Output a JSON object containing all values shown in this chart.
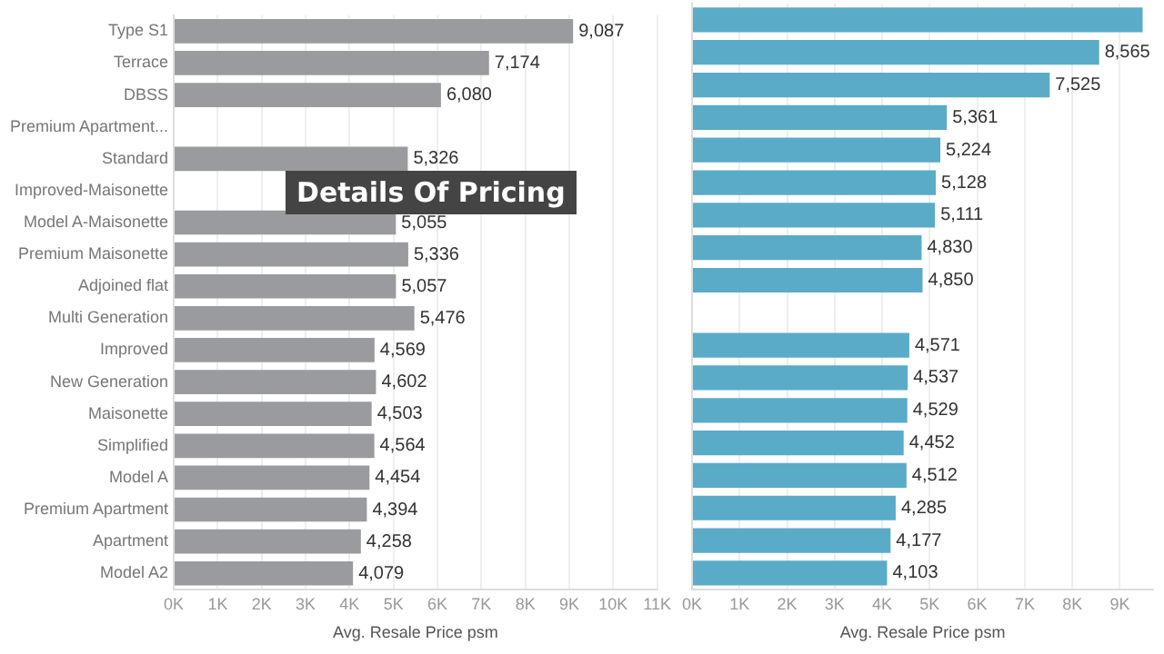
{
  "chart_data": [
    {
      "type": "bar",
      "orientation": "horizontal",
      "xlabel": "Avg. Resale Price psm",
      "categories": [
        "Type S1",
        "Terrace",
        "DBSS",
        "Premium Apartment...",
        "Standard",
        "Improved-Maisonette",
        "Model A-Maisonette",
        "Premium Maisonette",
        "Adjoined flat",
        "Multi Generation",
        "Improved",
        "New Generation",
        "Maisonette",
        "Simplified",
        "Model A",
        "Premium Apartment",
        "Apartment",
        "Model A2"
      ],
      "series": [
        {
          "color": "#999b9e",
          "values": [
            9087,
            7174,
            6080,
            null,
            5326,
            null,
            5055,
            5336,
            5057,
            5476,
            4569,
            4602,
            4503,
            4564,
            4454,
            4394,
            4258,
            4079
          ],
          "value_labels": [
            "9,087",
            "7,174",
            "6,080",
            null,
            "5,326",
            null,
            "5,055",
            "5,336",
            "5,057",
            "5,476",
            "4,569",
            "4,602",
            "4,503",
            "4,564",
            "4,454",
            "4,394",
            "4,258",
            "4,079"
          ]
        }
      ],
      "xlim": [
        0,
        11000
      ],
      "xticks": [
        {
          "value": 0,
          "label": "0K"
        },
        {
          "value": 1000,
          "label": "1K"
        },
        {
          "value": 2000,
          "label": "2K"
        },
        {
          "value": 3000,
          "label": "3K"
        },
        {
          "value": 4000,
          "label": "4K"
        },
        {
          "value": 5000,
          "label": "5K"
        },
        {
          "value": 6000,
          "label": "6K"
        },
        {
          "value": 7000,
          "label": "7K"
        },
        {
          "value": 8000,
          "label": "8K"
        },
        {
          "value": 9000,
          "label": "9K"
        },
        {
          "value": 10000,
          "label": "10K"
        },
        {
          "value": 11000,
          "label": "11K"
        }
      ],
      "grid": "x",
      "annotations": [
        "Details Of Pricing"
      ]
    },
    {
      "type": "bar",
      "orientation": "horizontal",
      "xlabel": "Avg. Resale Price psm",
      "tick_labels": "x",
      "categories": [
        null,
        null,
        null,
        null,
        null,
        null,
        null,
        null,
        null,
        null,
        null,
        null,
        null,
        null,
        null,
        null,
        null,
        null
      ],
      "series": [
        {
          "color": "#5aabc8",
          "values": [
            9480,
            8565,
            7525,
            5361,
            5224,
            5128,
            5111,
            4830,
            4850,
            null,
            4571,
            4537,
            4529,
            4452,
            4512,
            4285,
            4177,
            4103
          ],
          "value_labels": [
            null,
            "8,565",
            "7,525",
            "5,361",
            "5,224",
            "5,128",
            "5,111",
            "4,830",
            "4,850",
            null,
            "4,571",
            "4,537",
            "4,529",
            "4,452",
            "4,512",
            "4,285",
            "4,177",
            "4,103"
          ]
        }
      ],
      "xlim": [
        0,
        9700
      ],
      "xticks": [
        {
          "value": 0,
          "label": "0K"
        },
        {
          "value": 1000,
          "label": "1K"
        },
        {
          "value": 2000,
          "label": "2K"
        },
        {
          "value": 3000,
          "label": "3K"
        },
        {
          "value": 4000,
          "label": "4K"
        },
        {
          "value": 5000,
          "label": "5K"
        },
        {
          "value": 6000,
          "label": "6K"
        },
        {
          "value": 7000,
          "label": "7K"
        },
        {
          "value": 8000,
          "label": "8K"
        },
        {
          "value": 9000,
          "label": "9K"
        }
      ],
      "grid": "x"
    }
  ]
}
